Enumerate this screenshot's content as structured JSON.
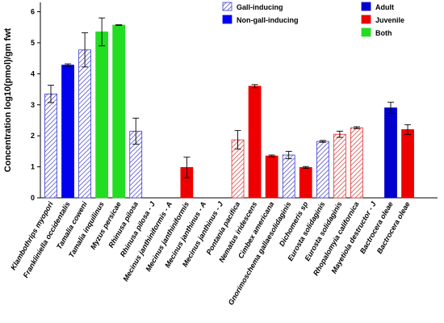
{
  "chart_data": {
    "type": "bar",
    "ylabel": "Concentration log10(pmol)/gm fwt",
    "ylim": [
      0,
      6.3
    ],
    "yticks": [
      0,
      1,
      2,
      3,
      4,
      5,
      6
    ],
    "grid": false,
    "colors": {
      "gall_hatch": "#3a3acc",
      "non_gall": "#0000ee",
      "juvenile_hatch": "#e03030",
      "juvenile": "#ee0000",
      "both": "#22dd22",
      "adult": "#0000cc"
    },
    "categories": [
      "Klambothrips myopori",
      "Frankliniella occidentalis",
      "Tamalia coweni",
      "Tamalia inquilinus",
      "Myzus persicae",
      "Rhinusa pilosa",
      "Rhinusa pilosa - J",
      "Mecinus janthiniformis - A",
      "Mecinus janthiniformis",
      "Mecinus janthinus - A",
      "Mecinus janthinus - J",
      "Pontania pacifica",
      "Nematus iridescens",
      "Cimbex americana",
      "Gnorimoschema gallaesolidaginis",
      "Dichomeris sp",
      "Eurosta solidaginis",
      "Eurosta solidaginis",
      "Rhopalomyia californica",
      "Mayetiola destructor - J",
      "Bactrocera oleae",
      "Bactrocera oleae"
    ],
    "values": [
      3.35,
      4.28,
      4.77,
      5.35,
      5.57,
      2.15,
      0,
      0,
      0.98,
      0,
      0,
      1.87,
      3.6,
      1.35,
      1.38,
      0.98,
      1.82,
      2.05,
      2.26,
      0,
      2.9,
      2.2
    ],
    "errors": [
      0.28,
      0.04,
      0.55,
      0.45,
      0.01,
      0.42,
      0,
      0,
      0.33,
      0,
      0,
      0.3,
      0.05,
      0.03,
      0.12,
      0.03,
      0.03,
      0.1,
      0.03,
      0,
      0.18,
      0.16
    ],
    "styles": [
      "gall_hatch",
      "non_gall",
      "gall_hatch",
      "both",
      "both",
      "gall_hatch",
      "none",
      "none",
      "juvenile",
      "none",
      "none",
      "juvenile_hatch",
      "juvenile",
      "juvenile",
      "gall_hatch",
      "juvenile",
      "gall_hatch",
      "juvenile_hatch",
      "juvenile_hatch",
      "none",
      "adult",
      "juvenile"
    ],
    "legend": [
      {
        "label": "Gall-inducing",
        "style": "gall_hatch"
      },
      {
        "label": "Non-gall-inducing",
        "style": "non_gall"
      },
      {
        "label": "Adult",
        "style": "adult"
      },
      {
        "label": "Juvenile",
        "style": "juvenile"
      },
      {
        "label": "Both",
        "style": "both"
      }
    ]
  }
}
